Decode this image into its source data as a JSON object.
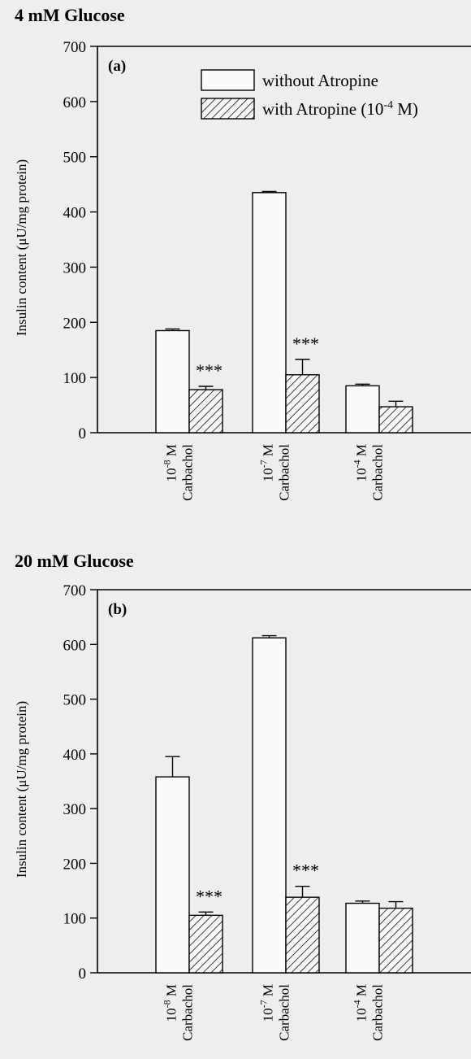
{
  "chart_data": [
    {
      "type": "bar",
      "title": "4 mM Glucose",
      "panel_label": "(a)",
      "ylabel": "Insulin content (μU/mg protein)",
      "ylim": [
        0,
        700
      ],
      "yticks": [
        0,
        100,
        200,
        300,
        400,
        500,
        600,
        700
      ],
      "categories": [
        {
          "line1": "10",
          "sup": "-8",
          "unit": " M",
          "line2": "Carbachol"
        },
        {
          "line1": "10",
          "sup": "-7",
          "unit": " M",
          "line2": "Carbachol"
        },
        {
          "line1": "10",
          "sup": "-4",
          "unit": " M",
          "line2": "Carbachol"
        }
      ],
      "series": [
        {
          "name": "without Atropine",
          "pattern": "open",
          "values": [
            185,
            435,
            85
          ],
          "errors": [
            3,
            2,
            3
          ]
        },
        {
          "name": "with Atropine (10",
          "name_sup": "-4",
          "name_suffix": " M)",
          "pattern": "hatched",
          "values": [
            78,
            105,
            47
          ],
          "errors": [
            6,
            28,
            10
          ]
        }
      ],
      "significance": [
        {
          "category": 0,
          "series": 1,
          "label": "***"
        },
        {
          "category": 1,
          "series": 1,
          "label": "***"
        }
      ],
      "legend_position": "top-right"
    },
    {
      "type": "bar",
      "title": "20 mM Glucose",
      "panel_label": "(b)",
      "ylabel": "Insulin content (μU/mg protein)",
      "ylim": [
        0,
        700
      ],
      "yticks": [
        0,
        100,
        200,
        300,
        400,
        500,
        600,
        700
      ],
      "categories": [
        {
          "line1": "10",
          "sup": "-8",
          "unit": " M",
          "line2": "Carbachol"
        },
        {
          "line1": "10",
          "sup": "-7",
          "unit": " M",
          "line2": "Carbachol"
        },
        {
          "line1": "10",
          "sup": "-4",
          "unit": " M",
          "line2": "Carbachol"
        }
      ],
      "series": [
        {
          "name": "without Atropine",
          "pattern": "open",
          "values": [
            358,
            612,
            127
          ],
          "errors": [
            37,
            4,
            4
          ]
        },
        {
          "name": "with Atropine (10",
          "name_sup": "-4",
          "name_suffix": " M)",
          "pattern": "hatched",
          "values": [
            105,
            138,
            118
          ],
          "errors": [
            6,
            20,
            12
          ]
        }
      ],
      "significance": [
        {
          "category": 0,
          "series": 1,
          "label": "***"
        },
        {
          "category": 1,
          "series": 1,
          "label": "***"
        }
      ]
    }
  ]
}
